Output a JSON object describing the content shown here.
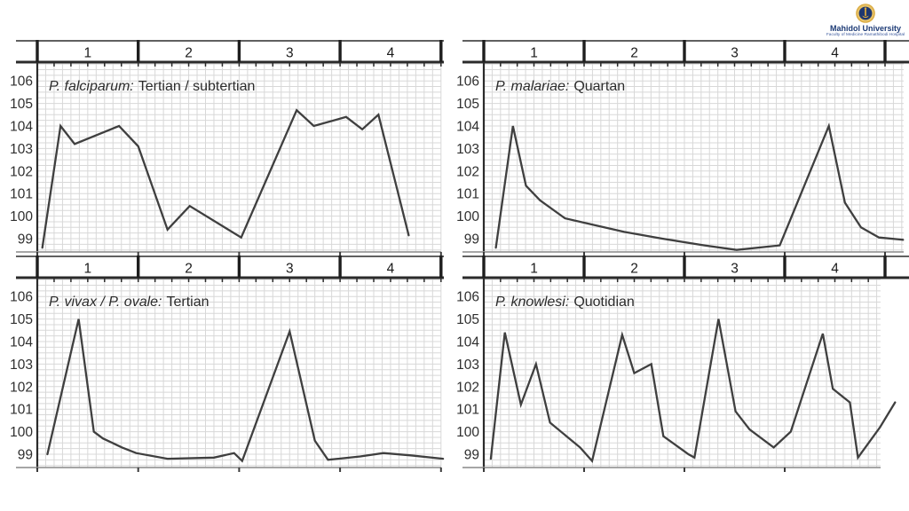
{
  "page": {
    "background": "#ffffff",
    "description": "Slide with four malaria fever-pattern temperature charts over 4 days"
  },
  "logo": {
    "university": "Mahidol University",
    "faculty": "Faculty of Medicine Ramathibodi Hospital",
    "text_color": "#1c3a75",
    "faculty_color": "#3d5a9e",
    "emblem_gold": "#d9a83c",
    "emblem_navy": "#1f3870"
  },
  "style": {
    "grid_color": "#d8d8d8",
    "line_color": "#3f3f3f",
    "axis_dark": "#2b2b2b",
    "bottom_line": "#9a9a9a",
    "label_color": "#2f2f2f",
    "title_color": "#2b2b2b"
  },
  "axes": {
    "day_labels": [
      "1",
      "2",
      "3",
      "4"
    ],
    "temp_labels": [
      106,
      105,
      104,
      103,
      102,
      101,
      100,
      99
    ],
    "x_unit": "day",
    "y_unit": "degrees F",
    "ylim": [
      98.4,
      106.8
    ],
    "grid": true
  },
  "chart_data": [
    {
      "type": "line",
      "title": "P. falciparum: Tertian / subtertian",
      "title_italic": "P. falciparum:",
      "title_rest": "Tertian / subtertian",
      "x_days": [
        0.05,
        0.23,
        0.37,
        0.81,
        1.0,
        1.29,
        1.51,
        2.02,
        2.57,
        2.74,
        3.06,
        3.22,
        3.38,
        3.68
      ],
      "temps_f": [
        98.6,
        104.0,
        103.2,
        104.0,
        103.1,
        99.4,
        100.45,
        99.05,
        104.7,
        104.0,
        104.4,
        103.85,
        104.5,
        99.15
      ]
    },
    {
      "type": "line",
      "title": "P. malariae: Quartan",
      "title_italic": "P. malariae:",
      "title_rest": "Quartan",
      "x_days": [
        0.12,
        0.29,
        0.42,
        0.56,
        0.81,
        1.4,
        1.78,
        2.2,
        2.52,
        2.95,
        3.44,
        3.6,
        3.76,
        3.94,
        4.18
      ],
      "temps_f": [
        98.6,
        104.0,
        101.35,
        100.7,
        99.9,
        99.3,
        99.0,
        98.7,
        98.5,
        98.7,
        104.0,
        100.6,
        99.5,
        99.05,
        98.95
      ]
    },
    {
      "type": "line",
      "title": "P. vivax / P. ovale: Tertian",
      "title_italic": "P. vivax / P. ovale:",
      "title_rest": "Tertian",
      "x_days": [
        0.1,
        0.41,
        0.56,
        0.65,
        0.84,
        0.98,
        1.29,
        1.75,
        1.95,
        2.03,
        2.5,
        2.75,
        2.88,
        3.2,
        3.43,
        3.7,
        4.02
      ],
      "temps_f": [
        99.0,
        105.0,
        100.0,
        99.7,
        99.3,
        99.05,
        98.8,
        98.85,
        99.05,
        98.7,
        104.45,
        99.6,
        98.75,
        98.9,
        99.05,
        98.95,
        98.8
      ]
    },
    {
      "type": "line",
      "title": "P. knowlesi: Quotidian",
      "title_italic": "P. knowlesi:",
      "title_rest": "Quotidian",
      "x_days": [
        0.07,
        0.21,
        0.37,
        0.52,
        0.66,
        0.96,
        1.08,
        1.38,
        1.5,
        1.67,
        1.79,
        2.04,
        2.1,
        2.34,
        2.51,
        2.65,
        2.89,
        3.06,
        3.38,
        3.48,
        3.65,
        3.73,
        3.95,
        4.1
      ],
      "temps_f": [
        98.8,
        104.4,
        101.2,
        103.0,
        100.4,
        99.3,
        98.7,
        104.3,
        102.6,
        103.0,
        99.8,
        99.0,
        98.85,
        105.0,
        100.9,
        100.1,
        99.3,
        100.0,
        104.35,
        101.9,
        101.3,
        98.85,
        100.2,
        101.3
      ]
    }
  ]
}
